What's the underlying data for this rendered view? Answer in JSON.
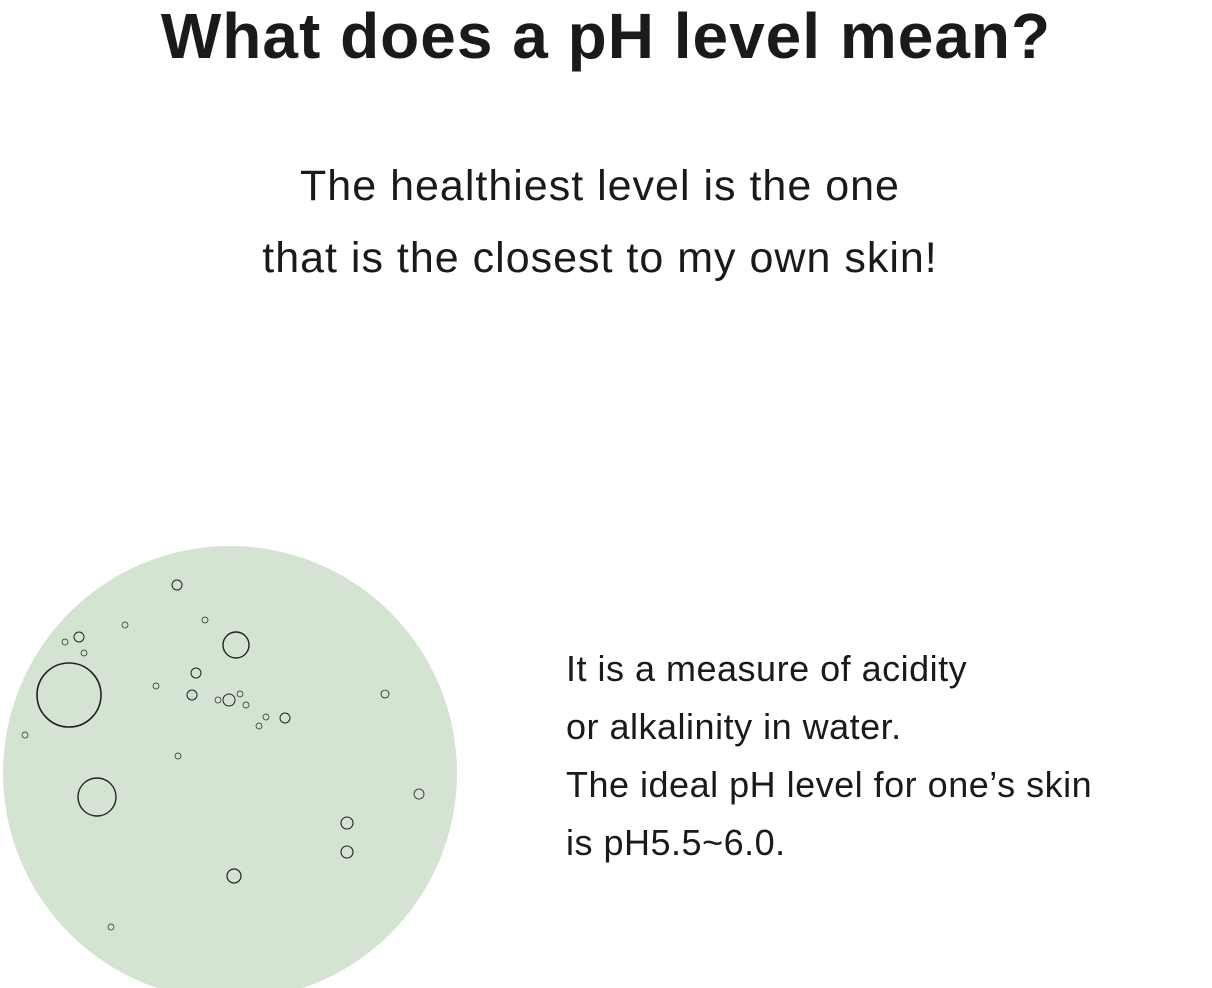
{
  "heading": "What does a pH level mean?",
  "subheading": {
    "lines": [
      "The healthiest level is the one",
      "that is the closest to my own skin!"
    ]
  },
  "description": {
    "lines": [
      "It is a measure of acidity",
      "or alkalinity in water.",
      "The ideal pH level for one’s skin",
      "is pH5.5~6.0."
    ]
  },
  "image": {
    "subject": "water-bubbles-circle",
    "color": "#d4e3d2"
  }
}
